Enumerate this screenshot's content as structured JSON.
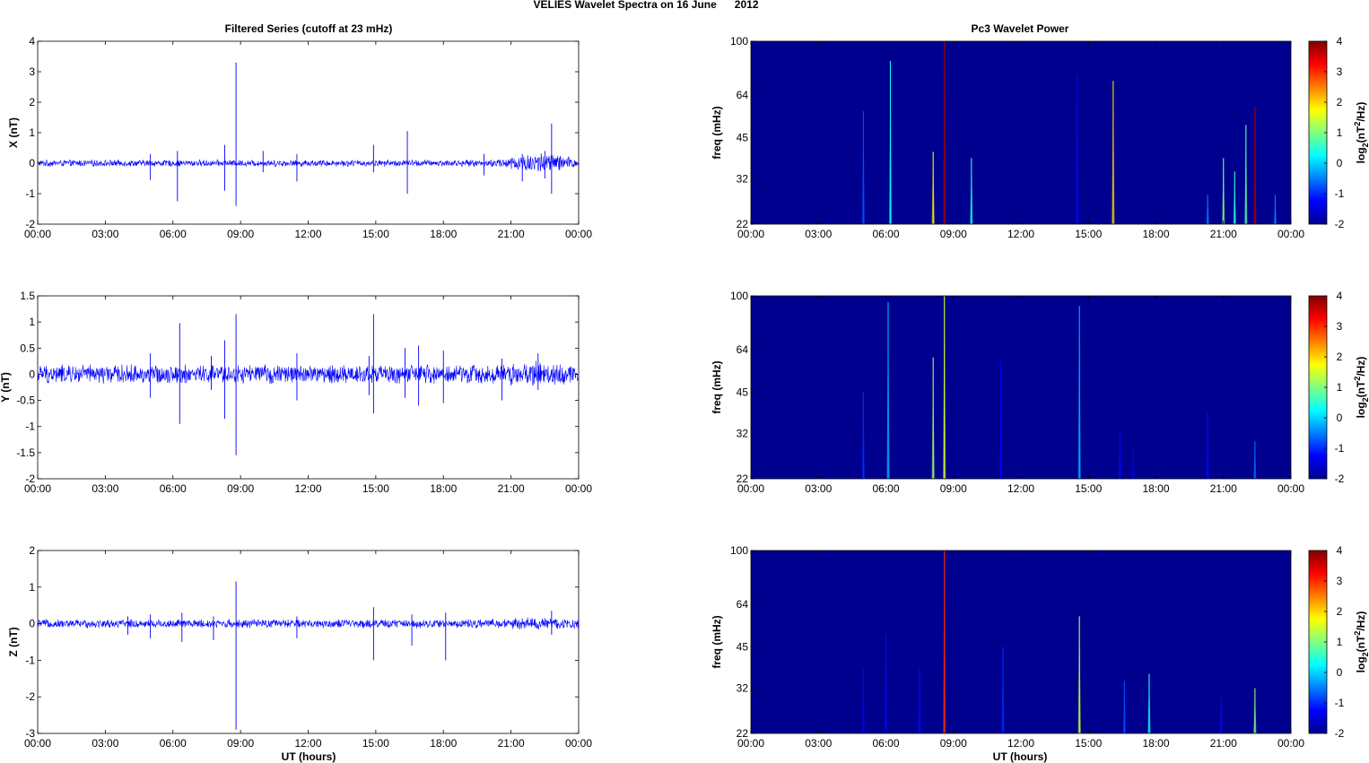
{
  "figure": {
    "title": "VELIES Wavelet Spectra on 16 June      2012",
    "left_title": "Filtered Series (cutoff at 23 mHz)",
    "right_title": "Pc3 Wavelet Power",
    "xlabel": "UT (hours)",
    "colorbar_label": "log2(nT2/Hz)",
    "colorbar_label_parts": {
      "base": "log",
      "sub": "2",
      "open": "(nT",
      "sup": "2",
      "close": "/Hz)"
    },
    "colormap": "jet",
    "background_color": "#00008f",
    "trace_color": "#0000ff"
  },
  "chart_data": [
    {
      "type": "line",
      "name": "filtered-x",
      "ylabel": "X (nT)",
      "xlim": [
        0,
        24
      ],
      "ylim": [
        -2,
        4
      ],
      "x_ticks": [
        "00:00",
        "03:00",
        "06:00",
        "09:00",
        "12:00",
        "15:00",
        "18:00",
        "21:00",
        "00:00"
      ],
      "y_ticks": [
        "4",
        "3",
        "2",
        "1",
        "0",
        "-1",
        "-2"
      ],
      "noise_envelope": [
        [
          0,
          0.12
        ],
        [
          20,
          0.12
        ],
        [
          21,
          0.25
        ],
        [
          22,
          0.4
        ],
        [
          23,
          0.35
        ],
        [
          24,
          0.15
        ]
      ],
      "spikes": [
        [
          5.0,
          0.3,
          -0.55
        ],
        [
          6.2,
          0.4,
          -1.25
        ],
        [
          8.3,
          0.6,
          -0.9
        ],
        [
          8.8,
          3.3,
          -1.4
        ],
        [
          10.0,
          0.4,
          -0.3
        ],
        [
          11.5,
          0.3,
          -0.6
        ],
        [
          14.9,
          0.6,
          -0.3
        ],
        [
          16.4,
          1.05,
          -1.0
        ],
        [
          19.8,
          0.3,
          -0.4
        ],
        [
          21.5,
          0.3,
          -0.6
        ],
        [
          22.5,
          0.4,
          -0.5
        ],
        [
          22.8,
          1.3,
          -1.0
        ]
      ]
    },
    {
      "type": "line",
      "name": "filtered-y",
      "ylabel": "Y (nT)",
      "xlim": [
        0,
        24
      ],
      "ylim": [
        -2,
        1.5
      ],
      "x_ticks": [
        "00:00",
        "03:00",
        "06:00",
        "09:00",
        "12:00",
        "15:00",
        "18:00",
        "21:00",
        "00:00"
      ],
      "y_ticks": [
        "1.5",
        "1",
        "0.5",
        "0",
        "-0.5",
        "-1",
        "-1.5",
        "-2"
      ],
      "noise_envelope": [
        [
          0,
          0.2
        ],
        [
          20,
          0.2
        ],
        [
          22,
          0.28
        ],
        [
          24,
          0.2
        ]
      ],
      "spikes": [
        [
          5.0,
          0.4,
          -0.45
        ],
        [
          6.3,
          0.98,
          -0.95
        ],
        [
          7.7,
          0.35,
          -0.3
        ],
        [
          8.3,
          0.65,
          -0.85
        ],
        [
          8.8,
          1.15,
          -1.55
        ],
        [
          11.5,
          0.4,
          -0.5
        ],
        [
          14.7,
          0.35,
          -0.4
        ],
        [
          14.9,
          1.15,
          -0.75
        ],
        [
          16.3,
          0.5,
          -0.45
        ],
        [
          16.9,
          0.55,
          -0.6
        ],
        [
          18.0,
          0.45,
          -0.55
        ],
        [
          20.6,
          0.3,
          -0.5
        ],
        [
          22.2,
          0.4,
          -0.3
        ]
      ]
    },
    {
      "type": "line",
      "name": "filtered-z",
      "ylabel": "Z (nT)",
      "xlim": [
        0,
        24
      ],
      "ylim": [
        -3,
        2
      ],
      "x_ticks": [
        "00:00",
        "03:00",
        "06:00",
        "09:00",
        "12:00",
        "15:00",
        "18:00",
        "21:00",
        "00:00"
      ],
      "y_ticks": [
        "2",
        "1",
        "0",
        "-1",
        "-2",
        "-3"
      ],
      "noise_envelope": [
        [
          0,
          0.13
        ],
        [
          20,
          0.13
        ],
        [
          22,
          0.2
        ],
        [
          24,
          0.15
        ]
      ],
      "spikes": [
        [
          4.0,
          0.2,
          -0.3
        ],
        [
          5.0,
          0.25,
          -0.4
        ],
        [
          6.4,
          0.3,
          -0.5
        ],
        [
          7.8,
          0.2,
          -0.45
        ],
        [
          8.8,
          1.15,
          -2.9
        ],
        [
          11.5,
          0.2,
          -0.4
        ],
        [
          14.9,
          0.45,
          -1.0
        ],
        [
          16.6,
          0.25,
          -0.6
        ],
        [
          18.1,
          0.3,
          -1.0
        ],
        [
          22.8,
          0.35,
          -0.3
        ]
      ]
    },
    {
      "type": "heatmap",
      "name": "wavelet-x",
      "ylabel": "freq (mHz)",
      "xlim": [
        0,
        24
      ],
      "ylim": [
        22,
        100
      ],
      "y_scale": "log",
      "clim": [
        -2,
        4
      ],
      "x_ticks": [
        "00:00",
        "03:00",
        "06:00",
        "09:00",
        "12:00",
        "15:00",
        "18:00",
        "21:00",
        "00:00"
      ],
      "y_ticks": [
        {
          "v": 100,
          "label": "100"
        },
        {
          "v": 64,
          "label": "64"
        },
        {
          "v": 45,
          "label": "45"
        },
        {
          "v": 32,
          "label": "32"
        },
        {
          "v": 22,
          "label": "22"
        }
      ],
      "colorbar_ticks": [
        "4",
        "3",
        "2",
        "1",
        "0",
        "-1",
        "-2"
      ],
      "streaks": [
        [
          5.0,
          56,
          -0.8
        ],
        [
          6.2,
          85,
          0.2
        ],
        [
          8.1,
          40,
          1.8
        ],
        [
          8.6,
          100,
          3.8
        ],
        [
          9.8,
          38,
          0.4
        ],
        [
          14.5,
          75,
          -1.2
        ],
        [
          16.1,
          72,
          2.0
        ],
        [
          20.3,
          28,
          -0.5
        ],
        [
          21.0,
          38,
          1.0
        ],
        [
          21.5,
          34,
          0.5
        ],
        [
          22.0,
          50,
          0.8
        ],
        [
          22.4,
          58,
          3.8
        ],
        [
          23.3,
          28,
          -0.5
        ]
      ]
    },
    {
      "type": "heatmap",
      "name": "wavelet-y",
      "ylabel": "freq (mHz)",
      "xlim": [
        0,
        24
      ],
      "ylim": [
        22,
        100
      ],
      "y_scale": "log",
      "clim": [
        -2,
        4
      ],
      "x_ticks": [
        "00:00",
        "03:00",
        "06:00",
        "09:00",
        "12:00",
        "15:00",
        "18:00",
        "21:00",
        "00:00"
      ],
      "y_ticks": [
        {
          "v": 100,
          "label": "100"
        },
        {
          "v": 64,
          "label": "64"
        },
        {
          "v": 45,
          "label": "45"
        },
        {
          "v": 32,
          "label": "32"
        },
        {
          "v": 22,
          "label": "22"
        }
      ],
      "colorbar_ticks": [
        "4",
        "3",
        "2",
        "1",
        "0",
        "-1",
        "-2"
      ],
      "streaks": [
        [
          5.0,
          45,
          -1.0
        ],
        [
          6.1,
          95,
          -0.2
        ],
        [
          8.1,
          60,
          1.2
        ],
        [
          8.6,
          100,
          1.5
        ],
        [
          11.1,
          60,
          -1.3
        ],
        [
          14.6,
          92,
          -0.2
        ],
        [
          16.4,
          32,
          -1.2
        ],
        [
          17.0,
          28,
          -1.3
        ],
        [
          20.3,
          38,
          -1.2
        ],
        [
          22.4,
          30,
          -0.6
        ]
      ]
    },
    {
      "type": "heatmap",
      "name": "wavelet-z",
      "ylabel": "freq (mHz)",
      "xlim": [
        0,
        24
      ],
      "ylim": [
        22,
        100
      ],
      "y_scale": "log",
      "clim": [
        -2,
        4
      ],
      "x_ticks": [
        "00:00",
        "03:00",
        "06:00",
        "09:00",
        "12:00",
        "15:00",
        "18:00",
        "21:00",
        "00:00"
      ],
      "y_ticks": [
        {
          "v": 100,
          "label": "100"
        },
        {
          "v": 64,
          "label": "64"
        },
        {
          "v": 45,
          "label": "45"
        },
        {
          "v": 32,
          "label": "32"
        },
        {
          "v": 22,
          "label": "22"
        }
      ],
      "colorbar_ticks": [
        "4",
        "3",
        "2",
        "1",
        "0",
        "-1",
        "-2"
      ],
      "streaks": [
        [
          5.0,
          38,
          -1.3
        ],
        [
          6.0,
          50,
          -1.2
        ],
        [
          7.5,
          38,
          -1.2
        ],
        [
          8.6,
          100,
          3.0
        ],
        [
          11.2,
          45,
          -1.0
        ],
        [
          14.6,
          58,
          1.5
        ],
        [
          16.6,
          34,
          -0.8
        ],
        [
          17.7,
          36,
          0.4
        ],
        [
          20.9,
          30,
          -1.2
        ],
        [
          22.4,
          32,
          1.0
        ]
      ]
    }
  ]
}
